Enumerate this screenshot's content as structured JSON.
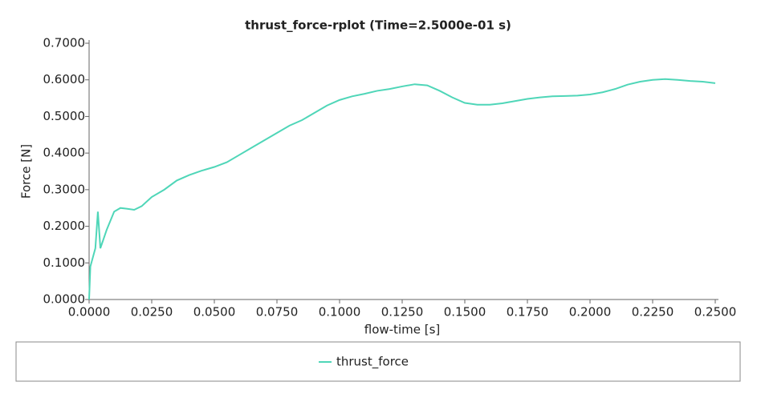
{
  "chart_data": {
    "type": "line",
    "title": "thrust_force-rplot (Time=2.5000e-01 s)",
    "x_label": "flow-time [s]",
    "y_label": "Force [N]",
    "xlim": [
      0,
      0.25
    ],
    "ylim": [
      0,
      0.7
    ],
    "xticks": [
      {
        "value": 0,
        "label": "0.0000"
      },
      {
        "value": 0.025,
        "label": "0.0250"
      },
      {
        "value": 0.05,
        "label": "0.0500"
      },
      {
        "value": 0.075,
        "label": "0.0750"
      },
      {
        "value": 0.1,
        "label": "0.1000"
      },
      {
        "value": 0.125,
        "label": "0.1250"
      },
      {
        "value": 0.15,
        "label": "0.1500"
      },
      {
        "value": 0.175,
        "label": "0.1750"
      },
      {
        "value": 0.2,
        "label": "0.2000"
      },
      {
        "value": 0.225,
        "label": "0.2250"
      },
      {
        "value": 0.25,
        "label": "0.2500"
      }
    ],
    "yticks": [
      {
        "value": 0,
        "label": "0.0000"
      },
      {
        "value": 0.1,
        "label": "0.1000"
      },
      {
        "value": 0.2,
        "label": "0.2000"
      },
      {
        "value": 0.3,
        "label": "0.3000"
      },
      {
        "value": 0.4,
        "label": "0.4000"
      },
      {
        "value": 0.5,
        "label": "0.5000"
      },
      {
        "value": 0.6,
        "label": "0.6000"
      },
      {
        "value": 0.7,
        "label": "0.7000"
      }
    ],
    "x": [
      0,
      0.0005,
      0.0025,
      0.0035,
      0.0045,
      0.007,
      0.01,
      0.0125,
      0.015,
      0.018,
      0.021,
      0.025,
      0.03,
      0.035,
      0.04,
      0.045,
      0.05,
      0.055,
      0.06,
      0.065,
      0.07,
      0.075,
      0.08,
      0.085,
      0.09,
      0.095,
      0.1,
      0.105,
      0.11,
      0.115,
      0.12,
      0.125,
      0.13,
      0.135,
      0.14,
      0.145,
      0.15,
      0.155,
      0.16,
      0.165,
      0.17,
      0.175,
      0.18,
      0.185,
      0.19,
      0.195,
      0.2,
      0.205,
      0.21,
      0.215,
      0.22,
      0.225,
      0.23,
      0.235,
      0.24,
      0.245,
      0.25
    ],
    "series": [
      {
        "name": "thrust_force",
        "color": "#4fd6b8",
        "values": [
          0,
          0.09,
          0.14,
          0.24,
          0.14,
          0.19,
          0.24,
          0.25,
          0.248,
          0.245,
          0.255,
          0.28,
          0.3,
          0.325,
          0.34,
          0.352,
          0.362,
          0.375,
          0.395,
          0.415,
          0.435,
          0.455,
          0.475,
          0.49,
          0.51,
          0.53,
          0.545,
          0.555,
          0.562,
          0.57,
          0.575,
          0.582,
          0.588,
          0.585,
          0.57,
          0.552,
          0.537,
          0.532,
          0.532,
          0.536,
          0.542,
          0.548,
          0.552,
          0.555,
          0.556,
          0.557,
          0.56,
          0.566,
          0.575,
          0.587,
          0.595,
          0.6,
          0.602,
          0.6,
          0.597,
          0.595,
          0.591
        ]
      }
    ]
  }
}
